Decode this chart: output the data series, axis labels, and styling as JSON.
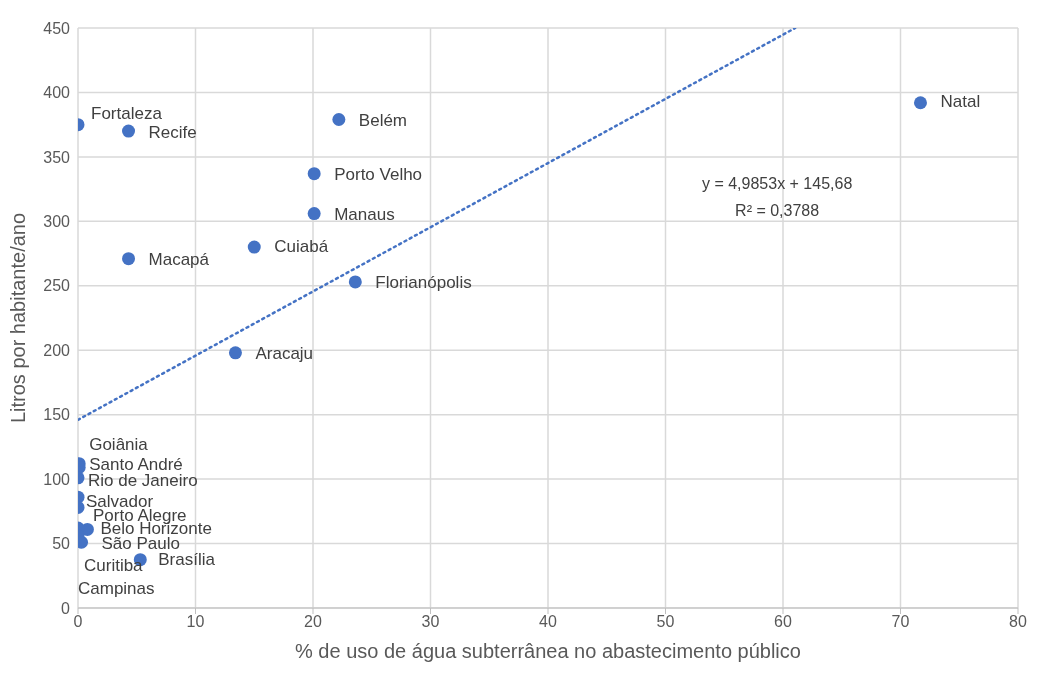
{
  "chart_data": {
    "type": "scatter",
    "xlabel": "% de uso de água subterrânea no abastecimento público",
    "ylabel": "Litros por habitante/ano",
    "xlim": [
      0,
      80
    ],
    "xticks": [
      0,
      10,
      20,
      30,
      40,
      50,
      60,
      70,
      80
    ],
    "ylim": [
      0,
      450
    ],
    "yticks": [
      0,
      50,
      100,
      150,
      200,
      250,
      300,
      350,
      400,
      450
    ],
    "grid": true,
    "series": [
      {
        "type": "scatter",
        "color": "#4472c4",
        "marker": "circle",
        "x": [
          0,
          4.3,
          22.2,
          71.7,
          20.1,
          20.1,
          15,
          4.3,
          23.6,
          13.4,
          0.1,
          0.1,
          0,
          0,
          0,
          0.8,
          0.3,
          0,
          0,
          5.3
        ],
        "values": [
          375,
          370,
          379,
          392,
          337,
          306,
          280,
          271,
          253,
          198,
          112,
          109,
          101,
          86,
          78,
          61,
          51,
          62,
          56,
          37.5
        ]
      },
      {
        "type": "line",
        "color": "#4472c4",
        "line_style": "dotted",
        "x": [
          0,
          61.04
        ],
        "values": [
          146,
          450
        ]
      }
    ],
    "annotations": [
      {
        "text": "Fortaleza",
        "x": 0,
        "y": 375
      },
      {
        "text": "Recife",
        "x": 4.3,
        "y": 370
      },
      {
        "text": "Belém",
        "x": 22.2,
        "y": 379
      },
      {
        "text": "Natal",
        "x": 71.7,
        "y": 392
      },
      {
        "text": "Porto Velho",
        "x": 20.1,
        "y": 337
      },
      {
        "text": "Manaus",
        "x": 20.1,
        "y": 306
      },
      {
        "text": "Cuiabá",
        "x": 15,
        "y": 280
      },
      {
        "text": "Macapá",
        "x": 4.3,
        "y": 271
      },
      {
        "text": "Florianópolis",
        "x": 23.6,
        "y": 253
      },
      {
        "text": "Aracaju",
        "x": 13.4,
        "y": 198
      },
      {
        "text": "Goiânia",
        "x": 0.1,
        "y": 112
      },
      {
        "text": "Santo André",
        "x": 0.1,
        "y": 109
      },
      {
        "text": "Rio de Janeiro",
        "x": 0,
        "y": 101
      },
      {
        "text": "Salvador",
        "x": 0,
        "y": 86
      },
      {
        "text": "Porto Alegre",
        "x": 0,
        "y": 78
      },
      {
        "text": "Belo Horizonte",
        "x": 0.8,
        "y": 61
      },
      {
        "text": "São Paulo",
        "x": 0.3,
        "y": 51
      },
      {
        "text": "Curitiba",
        "x": 0,
        "y": 62
      },
      {
        "text": "Campinas",
        "x": 0,
        "y": 56
      },
      {
        "text": "Brasília",
        "x": 5.3,
        "y": 37.5
      },
      "y = 4,9853x + 145,68",
      "R² = 0,3788"
    ]
  }
}
